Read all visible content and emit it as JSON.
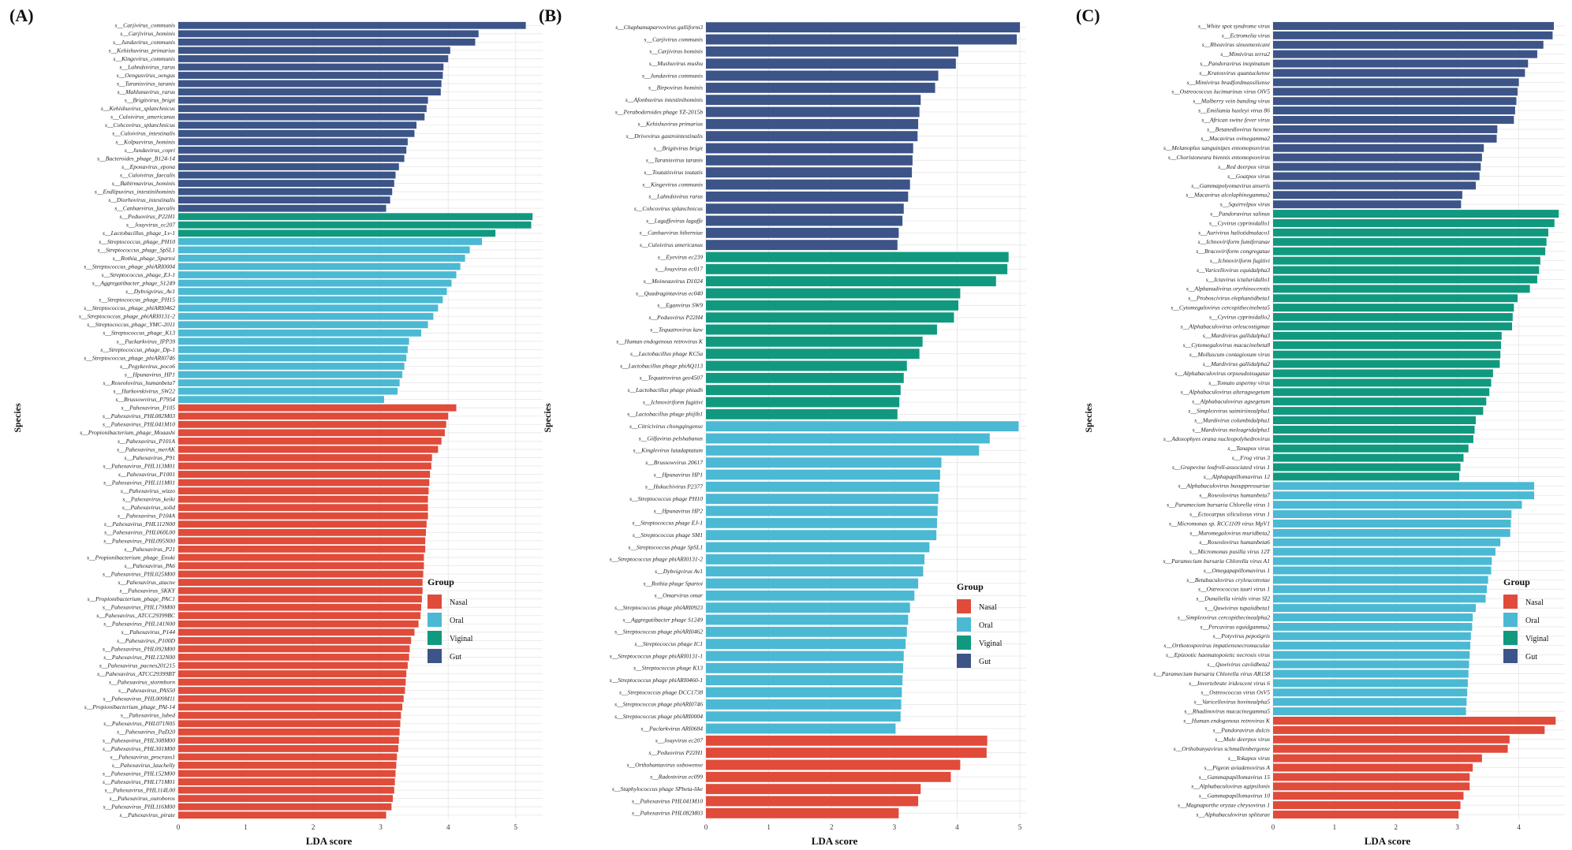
{
  "figure": {
    "axis_title_x": "LDA score",
    "axis_title_y": "Species",
    "legend_title": "Group",
    "groups": [
      {
        "key": "Nasal",
        "label": "Nasal",
        "color": "#E04B3A"
      },
      {
        "key": "Oral",
        "label": "Oral",
        "color": "#4BB9D3"
      },
      {
        "key": "Vaginal",
        "label": "Viginal",
        "color": "#11997F"
      },
      {
        "key": "Gut",
        "label": "Gut",
        "color": "#3C5488"
      }
    ],
    "grid_color": "#E6E6E6"
  },
  "chart_data": [
    {
      "type": "bar",
      "orientation": "horizontal",
      "panel_label": "(A)",
      "xlabel": "LDA score",
      "ylabel": "Species",
      "xlim": [
        0,
        5.4
      ],
      "xticks": [
        0,
        1,
        2,
        3,
        4,
        5
      ],
      "series": [
        {
          "group": "Gut",
          "categories": [
            "s__Carjivirus_communis",
            "s__Carjivirus_hominis",
            "s__Jundavirus_communis",
            "s__Kehishuvirus_primarius",
            "s__Kingevirus_communis",
            "s__Lahndsivirus_rarus",
            "s__Oengusvirus_oengus",
            "s__Taranisvirus_taranis",
            "s__Mahlunavirus_rarus",
            "s__Brigitvirus_brigit",
            "s__Kehishuvirus_splanchnicus",
            "s__Culoivirus_americanus",
            "s__Cohcovirus_splanchnicus",
            "s__Culoivirus_intestinalis",
            "s__Kolpuevirus_hominis",
            "s__Jundavirus_copri",
            "s__Bacteroides_phage_B124-14",
            "s__Eponavirus_epona",
            "s__Culoivirus_faecalis",
            "s__Babirmavirus_hominis",
            "s__Endlipuvirus_intestinihominis",
            "s__Diorhovirus_intestinalis",
            "s__Canhaevirus_faecalis"
          ],
          "values": [
            5.15,
            4.45,
            4.4,
            4.03,
            4.0,
            3.93,
            3.92,
            3.9,
            3.89,
            3.7,
            3.68,
            3.65,
            3.53,
            3.5,
            3.4,
            3.38,
            3.35,
            3.27,
            3.22,
            3.2,
            3.17,
            3.14,
            3.08
          ]
        },
        {
          "group": "Vaginal",
          "categories": [
            "s__Peduovirus_P22H1",
            "s__Jouyvirus_ec207",
            "s__Lactobacillus_phage_Lv-1"
          ],
          "values": [
            5.25,
            5.23,
            4.7
          ]
        },
        {
          "group": "Oral",
          "categories": [
            "s__Streptococcus_phage_PH10",
            "s__Streptococcus_phage_SpSL1",
            "s__Rothia_phage_Spartoi",
            "s__Streptococcus_phage_phiARI0004",
            "s__Streptococcus_phage_EJ-1",
            "s__Aggregatibacter_phage_S1249",
            "s__Dybvigvirus_Av1",
            "s__Streptococcus_phage_PH15",
            "s__Streptococcus_phage_phiARI0462",
            "s__Streptococcus_phage_phiARI0131-2",
            "s__Streptococcus_phage_YMC-2011",
            "s__Streptococcus_phage_K13",
            "s__Packarkvirus_IPP39",
            "s__Streptococcus_phage_Dp-1",
            "s__Streptococcus_phage_phiARI0746",
            "s__Pegykevirus_poco6",
            "s__Hpunavirus_HP1",
            "s__Roseolovirus_humanbeta7",
            "s__Harkovskivirus_SW22",
            "s__Brussowvirus_P7954"
          ],
          "values": [
            4.5,
            4.32,
            4.25,
            4.18,
            4.12,
            4.05,
            3.98,
            3.92,
            3.85,
            3.78,
            3.7,
            3.6,
            3.42,
            3.4,
            3.38,
            3.35,
            3.32,
            3.28,
            3.25,
            3.05
          ]
        },
        {
          "group": "Nasal",
          "categories": [
            "s__Pahexavirus_P105",
            "s__Pahexavirus_PHL082M03",
            "s__Pahexavirus_PHL041M10",
            "s__Propionibacterium_phage_Moaashi",
            "s__Pahexavirus_P101A",
            "s__Pahexavirus_merAK",
            "s__Pahexavirus_P91",
            "s__Pahexavirus_PHL113M01",
            "s__Pahexavirus_P1001",
            "s__Pahexavirus_PHL111M01",
            "s__Pahexavirus_wizzo",
            "s__Pahexavirus_keiki",
            "s__Pahexavirus_solid",
            "s__Pahexavirus_P104A",
            "s__Pahexavirus_PHL112N00",
            "s__Pahexavirus_PHL060L00",
            "s__Pahexavirus_PHL095N00",
            "s__Pahexavirus_P21",
            "s__Propionibacterium_phage_Enoki",
            "s__Pahexavirus_PA6",
            "s__Pahexavirus_PHL025M00",
            "s__Pahexavirus_atacne",
            "s__Pahexavirus_SKKY",
            "s__Propionibacterium_phage_PAC1",
            "s__Pahexavirus_PHL179M00",
            "s__Pahexavirus_ATCC29399BC",
            "s__Pahexavirus_PHL141N00",
            "s__Pahexavirus_P144",
            "s__Pahexavirus_P100D",
            "s__Pahexavirus_PHL092M00",
            "s__Pahexavirus_PHL132N00",
            "s__Pahexavirus_pacnes201215",
            "s__Pahexavirus_ATCC29399BT",
            "s__Pahexavirus_stormborn",
            "s__Pahexavirus_PAS50",
            "s__Pahexavirus_PHL009M11",
            "s__Propionibacterium_phage_PAI-14",
            "s__Pahexavirus_lubed",
            "s__Pahexavirus_PHL071N05",
            "s__Pahexavirus_PaD20",
            "s__Pahexavirus_PHL308M00",
            "s__Pahexavirus_PHL301M00",
            "s__Pahexavirus_procrass1",
            "s__Pahexavirus_lauchelly",
            "s__Pahexavirus_PHL152M00",
            "s__Pahexavirus_PHL171M01",
            "s__Pahexavirus_PHL114L00",
            "s__Pahexavirus_ouroboros",
            "s__Pahexavirus_PHL116M00",
            "s__Pahexavirus_pirate"
          ],
          "values": [
            4.12,
            4.0,
            3.97,
            3.95,
            3.9,
            3.85,
            3.76,
            3.75,
            3.73,
            3.72,
            3.71,
            3.7,
            3.7,
            3.7,
            3.68,
            3.67,
            3.66,
            3.66,
            3.64,
            3.64,
            3.63,
            3.62,
            3.62,
            3.61,
            3.6,
            3.59,
            3.56,
            3.5,
            3.45,
            3.43,
            3.42,
            3.4,
            3.38,
            3.37,
            3.36,
            3.34,
            3.32,
            3.3,
            3.29,
            3.28,
            3.27,
            3.26,
            3.24,
            3.23,
            3.22,
            3.21,
            3.2,
            3.18,
            3.16,
            3.08
          ]
        }
      ]
    },
    {
      "type": "bar",
      "orientation": "horizontal",
      "panel_label": "(B)",
      "xlabel": "LDA score",
      "ylabel": "Species",
      "xlim": [
        0,
        5.1
      ],
      "xticks": [
        0,
        1,
        2,
        3,
        4,
        5
      ],
      "series": [
        {
          "group": "Gut",
          "categories": [
            "s__Chaphamaparvovirus galliform3",
            "s__Carjivirus communis",
            "s__Carjivirus hominis",
            "s__Mushuvirus mushu",
            "s__Jundavirus communis",
            "s__Birpovirus hominis",
            "s__Afonbuvirus intestinihominis",
            "s__Peraboderoides phage YZ-2015b",
            "s__Kehishuvirus primarius",
            "s__Drivevirus gastrointestinalis",
            "s__Brigitvirus brigit",
            "s__Taranisvirus taranis",
            "s__Toutatisvirus toutatis",
            "s__Kingevirus communis",
            "s__Lahndsivirus rarus",
            "s__Cohcovirus splanchnicus",
            "s__Lagaffevirus lagaffe",
            "s__Canhaevirus hiberniae",
            "s__Culoivirus americanus"
          ],
          "values": [
            5.0,
            4.95,
            4.02,
            3.98,
            3.7,
            3.65,
            3.42,
            3.4,
            3.38,
            3.37,
            3.3,
            3.29,
            3.28,
            3.25,
            3.22,
            3.15,
            3.13,
            3.07,
            3.05
          ]
        },
        {
          "group": "Vaginal",
          "categories": [
            "s__Eyevirus ec239",
            "s__Jouyvirus ec017",
            "s__Moineauvirus D1024",
            "s__Quadragintavirus ec040",
            "s__Eganvirus SW9",
            "s__Peduovirus P22H4",
            "s__Tequatrovirus kaw",
            "s__Human endogenous retrovirus K",
            "s__Lactobacillus phage KC5a",
            "s__Lactobacillus phage phiAQ113",
            "s__Tequatrovirus gee4507",
            "s__Lactobacillus phage phiadh",
            "s__Ichnoviriform fugitivi",
            "s__Lactobacillus phage phijlb1"
          ],
          "values": [
            4.82,
            4.8,
            4.62,
            4.05,
            4.02,
            3.95,
            3.68,
            3.45,
            3.4,
            3.2,
            3.15,
            3.1,
            3.08,
            3.05
          ]
        },
        {
          "group": "Oral",
          "categories": [
            "s__Citricivirus chongqingense",
            "s__Gilfavirus pelshabanus",
            "s__Kinglevirus lutadaptatum",
            "s__Brussowvirus 20617",
            "s__Hpunavirus HP1",
            "s__Hukuchivirus P2377",
            "s__Streptococcus phage PH10",
            "s__Hpunavirus HP2",
            "s__Streptococcus phage EJ-1",
            "s__Streptococcus phage SM1",
            "s__Streptococcus phage SpSL1",
            "s__Streptococcus phage phiARI0131-2",
            "s__Dybvigvirus Av1",
            "s__Rothia phage Spartoi",
            "s__Omarvirus omar",
            "s__Streptococcus phage phiARI0923",
            "s__Aggregatibacter phage S1249",
            "s__Streptococcus phage phiARI0462",
            "s__Streptococcus phage IC1",
            "s__Streptococcus phage phiARI0131-1",
            "s__Streptococcus phage K13",
            "s__Streptococcus phage phiARI0460-1",
            "s__Streptococcus phage DCC1738",
            "s__Streptococcus phage phiARI0746",
            "s__Streptococcus phage phiARI0004",
            "s__Paclarkvirus ARI0684"
          ],
          "values": [
            4.98,
            4.52,
            4.35,
            3.75,
            3.73,
            3.72,
            3.7,
            3.69,
            3.68,
            3.67,
            3.56,
            3.48,
            3.46,
            3.38,
            3.32,
            3.25,
            3.22,
            3.2,
            3.18,
            3.15,
            3.14,
            3.13,
            3.12,
            3.11,
            3.1,
            3.02
          ]
        },
        {
          "group": "Nasal",
          "categories": [
            "s__Jouyvirus ec207",
            "s__Peduovirus P22H1",
            "s__Orthohantavirus oxbowense",
            "s__Radostvirus ec099",
            "s__Staphylococcus phage SPbeta-like",
            "s__Pahexavirus PHL041M10",
            "s__Pahexavirus PHL082M03"
          ],
          "values": [
            4.48,
            4.47,
            4.05,
            3.9,
            3.42,
            3.38,
            3.07
          ]
        }
      ]
    },
    {
      "type": "bar",
      "orientation": "horizontal",
      "panel_label": "(C)",
      "xlabel": "LDA score",
      "ylabel": "Species",
      "xlim": [
        0,
        4.75
      ],
      "xticks": [
        0,
        1,
        2,
        3,
        4
      ],
      "series": [
        {
          "group": "Gut",
          "categories": [
            "s__White spot syndrome virus",
            "s__Ectromelia virus",
            "s__Rheavirus sinusmexicani",
            "s__Mimivirus terra2",
            "s__Pandoravirus inopinatum",
            "s__Kratosvirus quantuckense",
            "s__Mimivirus bradfordmassiliense",
            "s__Ostreococcus lucimarinus virus OlV5",
            "s__Malberry vein banding virus",
            "s__Emiliania huxleyi virus 86",
            "s__African swine fever virus",
            "s__Betanedlovirus hexone",
            "s__Macavirus ovinegamma2",
            "s__Melanoplus sanguinipes entomopoxvirus",
            "s__Choristoneura biennis entomopoxvirus",
            "s__Red deerpox virus",
            "s__Goatpox virus",
            "s__Gammapolyomavirus anseris",
            "s__Macavirus alcelaphinegamma2",
            "s__Squirrelpox virus"
          ],
          "values": [
            4.57,
            4.55,
            4.4,
            4.3,
            4.15,
            4.1,
            4.0,
            3.98,
            3.96,
            3.94,
            3.92,
            3.65,
            3.64,
            3.43,
            3.4,
            3.38,
            3.36,
            3.3,
            3.08,
            3.06
          ]
        },
        {
          "group": "Vaginal",
          "categories": [
            "s__Pandoravirus salinus",
            "s__Cyvirus cyprinidallo1",
            "s__Aurivirus haliotidmalaco1",
            "s__Ichnoviriform fumiferanae",
            "s__Bracoviriform congregatae",
            "s__Ichnoviriform fugitivi",
            "s__Varicellovirus equidalpha3",
            "s__Ictavirus ictaluridallo1",
            "s__Alphanudivirus oryrhinocerotis",
            "s__Proboscivirus elephantidbeta1",
            "s__Cytomegalovirus cercopithecinebeta5",
            "s__Cyvirus cyprinidallo2",
            "s__Alphabaculovirus orleucostigmae",
            "s__Mardivirus gallidalpha3",
            "s__Cytomegalovirus macacinebeta8",
            "s__Molluscum contagiosum virus",
            "s__Mardivirus gallidalpha2",
            "s__Alphabaculovirus orpseudotsugatae",
            "s__Tomato aspermy virus",
            "s__Alphabaculovirus alteragsegetum",
            "s__Alphabaculovirus agsegetum",
            "s__Simplexvirus saimiriinealpha1",
            "s__Mardivirus columbidalpha1",
            "s__Mardivirus meleagridalpha1",
            "s__Adoxophyes orana nucleopolyhedrovirus",
            "s__Tanapox virus",
            "s__Frog virus 3",
            "s__Grapevine leafroll-associated virus 1",
            "s__Alphapapillomavirus 12"
          ],
          "values": [
            4.65,
            4.58,
            4.48,
            4.45,
            4.43,
            4.35,
            4.33,
            4.3,
            4.18,
            3.98,
            3.92,
            3.9,
            3.89,
            3.72,
            3.71,
            3.7,
            3.69,
            3.58,
            3.55,
            3.52,
            3.47,
            3.42,
            3.3,
            3.28,
            3.26,
            3.18,
            3.1,
            3.05,
            3.03
          ]
        },
        {
          "group": "Oral",
          "categories": [
            "s__Alphabaculovirus busuppressariae",
            "s__Roseolovirus humanbeta7",
            "s__Paramecium bursaria Chlorella virus 1",
            "s__Ectocarpus siliculosus virus 1",
            "s__Micromonas sp. RCC1109 virus MpV1",
            "s__Muromegalovirus muridbeta2",
            "s__Roseolovirus humanbeta6",
            "s__Micromonas pusilla virus 12T",
            "s__Paramecium bursaria Chlorella virus A1",
            "s__Omegapapillomavirus 1",
            "s__Betabaculovirus cryleucotretae",
            "s__Ostreococcus tauri virus 1",
            "s__Dunaliella viridis virus SI2",
            "s__Quwivirus tupaiidbeta1",
            "s__Simplexvirus cercopithecinealpha2",
            "s__Percavirus equidgamma2",
            "s__Potyvirus pepotigris",
            "s__Orthotospovirus impatiensnecromaculae",
            "s__Epizootic haematopoietic necrosis virus",
            "s__Quwivirus caviidbeta2",
            "s__Paramecium bursaria Chlorella virus AR158",
            "s__Invertebrate iridescent virus 6",
            "s__Ostreococcus virus OsV5",
            "s__Varicellovirus bovinealpha5",
            "s__Rhadinovirus macacinegamma5"
          ],
          "values": [
            4.25,
            4.25,
            4.05,
            3.88,
            3.87,
            3.86,
            3.7,
            3.62,
            3.56,
            3.55,
            3.5,
            3.48,
            3.46,
            3.3,
            3.25,
            3.24,
            3.22,
            3.21,
            3.2,
            3.19,
            3.18,
            3.17,
            3.16,
            3.15,
            3.14
          ]
        },
        {
          "group": "Nasal",
          "categories": [
            "s__Human endogenous retrovirus K",
            "s__Pandoravirus dulcis",
            "s__Mule deerpox virus",
            "s__Orthobunyavirus schmallenbergense",
            "s__Yokapox virus",
            "s__Pigeon aviadenovirus A",
            "s__Gammapapillomavirus 15",
            "s__Alphabaculovirus agipsilonis",
            "s__Gammapapillomavirus 10",
            "s__Magnaporthe oryzae chrysovirus 1",
            "s__Alphabaculovirus spliturae"
          ],
          "values": [
            4.6,
            4.42,
            3.85,
            3.82,
            3.4,
            3.25,
            3.2,
            3.2,
            3.1,
            3.05,
            3.02
          ]
        }
      ]
    }
  ]
}
